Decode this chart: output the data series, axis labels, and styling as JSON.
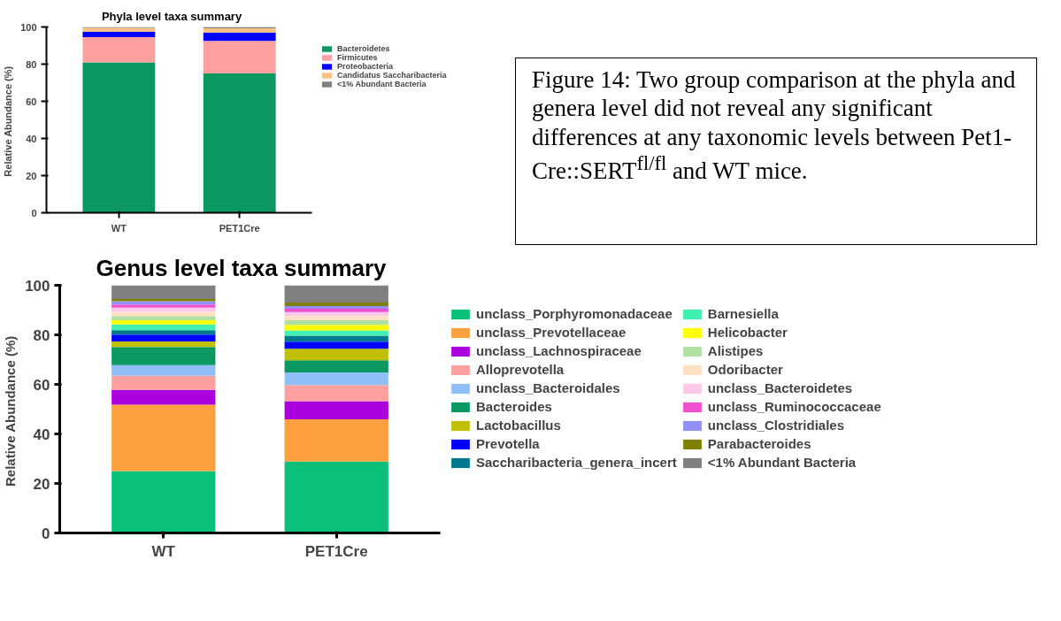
{
  "chart_data": [
    {
      "type": "bar",
      "title": "Phyla level taxa summary",
      "ylabel": "Relative  Abundance (%)",
      "categories": [
        "WT",
        "PET1Cre"
      ],
      "stacked": true,
      "ylim": [
        0,
        100
      ],
      "yticks": [
        0,
        20,
        40,
        60,
        80,
        100
      ],
      "grid": false,
      "legend": "right",
      "series": [
        {
          "name": "Bacteroidetes",
          "color": "#0a9860",
          "values": [
            81,
            75
          ]
        },
        {
          "name": "Firmicutes",
          "color": "#ffa0a0",
          "values": [
            13.5,
            17.5
          ]
        },
        {
          "name": "Proteobacteria",
          "color": "#0000ff",
          "values": [
            3,
            4.5
          ]
        },
        {
          "name": "Candidatus Saccharibacteria",
          "color": "#ffc080",
          "values": [
            2,
            2.3
          ]
        },
        {
          "name": "<1% Abundant Bacteria",
          "color": "#808080",
          "values": [
            0.5,
            0.7
          ]
        }
      ]
    },
    {
      "type": "other",
      "annotations": [
        "Figure 14: Two group comparison at the phyla and genera level did not reveal any significant differences at any taxonomic levels between Pet1-Cre::SERT$^{fl/fl}$ and WT mice."
      ]
    },
    {
      "type": "bar",
      "title": "Genus level taxa summary",
      "ylabel": "Relative  Abundance (%)",
      "categories": [
        "WT",
        "PET1Cre"
      ],
      "stacked": true,
      "ylim": [
        0,
        100
      ],
      "yticks": [
        0,
        20,
        40,
        60,
        80,
        100
      ],
      "grid": false,
      "legend": "right",
      "series": [
        {
          "name": "unclass_Porphyromonadaceae",
          "color": "#0abf78",
          "values": [
            25,
            28.8
          ]
        },
        {
          "name": "unclass_Prevotellaceae",
          "color": "#ffa040",
          "values": [
            26.8,
            17.1
          ]
        },
        {
          "name": "unclass_Lachnospiraceae",
          "color": "#aa00dd",
          "values": [
            6,
            7.3
          ]
        },
        {
          "name": "Alloprevotella",
          "color": "#ffa0a0",
          "values": [
            5.7,
            6.5
          ]
        },
        {
          "name": "unclass_Bacteroidales",
          "color": "#90bff8",
          "values": [
            4.3,
            5.1
          ]
        },
        {
          "name": "Bacteroides",
          "color": "#0a9860",
          "values": [
            7.3,
            4.9
          ]
        },
        {
          "name": "Lactobacillus",
          "color": "#c0c000",
          "values": [
            2.2,
            4.7
          ]
        },
        {
          "name": "Prevotella",
          "color": "#0000ff",
          "values": [
            2.8,
            2.8
          ]
        },
        {
          "name": "Saccharibacteria_genera_incert",
          "color": "#007890",
          "values": [
            1.8,
            2.4
          ]
        },
        {
          "name": "Barnesiella",
          "color": "#40f0b0",
          "values": [
            2.3,
            2.2
          ]
        },
        {
          "name": "Helicobacter",
          "color": "#ffff00",
          "values": [
            1.7,
            2.2
          ]
        },
        {
          "name": "Alistipes",
          "color": "#b0e0a0",
          "values": [
            1.7,
            1.9
          ]
        },
        {
          "name": "Odoribacter",
          "color": "#ffe0c0",
          "values": [
            1.7,
            1.7
          ]
        },
        {
          "name": "unclass_Bacteroidetes",
          "color": "#ffc8e8",
          "values": [
            1.7,
            1.6
          ]
        },
        {
          "name": "unclass_Ruminococcaceae",
          "color": "#f050d0",
          "values": [
            1.2,
            1.3
          ]
        },
        {
          "name": "unclass_Clostridiales",
          "color": "#9090f8",
          "values": [
            1.4,
            1.1
          ]
        },
        {
          "name": "Parabacteroides",
          "color": "#808000",
          "values": [
            0.9,
            1.4
          ]
        },
        {
          "name": "<1% Abundant Bacteria",
          "color": "#808080",
          "values": [
            5.5,
            7.0
          ]
        }
      ]
    }
  ]
}
